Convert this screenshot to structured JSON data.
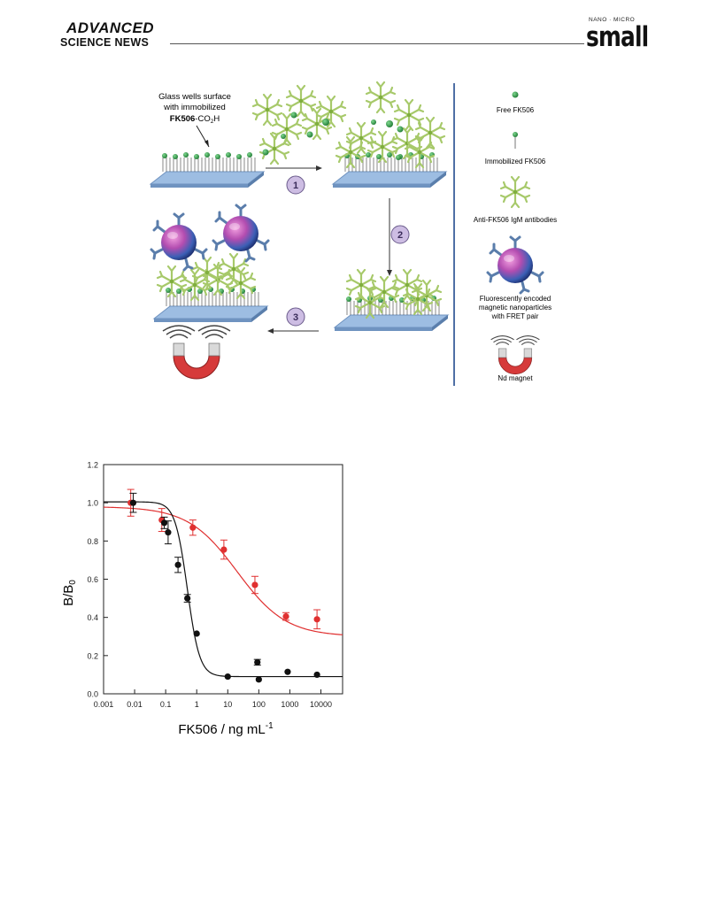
{
  "header": {
    "publisher_line1": "ADVANCED",
    "publisher_line2": "SCIENCE NEWS",
    "journal_prefix": "NANO · MICRO",
    "journal_name": "small"
  },
  "schematic": {
    "surface_label_lines": [
      "Glass wells surface",
      "with immobilized"
    ],
    "surface_label_compound": "FK506",
    "surface_label_suffix": "-CO",
    "surface_label_sub": "2",
    "surface_label_end": "H",
    "steps": [
      "1",
      "2",
      "3"
    ],
    "legend": [
      {
        "icon": "free-fk506-icon",
        "label": "Free FK506"
      },
      {
        "icon": "immobilized-fk506-icon",
        "label": "Immobilized  FK506"
      },
      {
        "icon": "igm-antibody-icon",
        "label": "Anti-FK506 IgM antibodies"
      },
      {
        "icon": "nanoparticle-icon",
        "label_lines": [
          "Fluorescently encoded",
          "magnetic nanoparticles",
          "with FRET pair"
        ]
      },
      {
        "icon": "magnet-icon",
        "label": "Nd magnet"
      }
    ],
    "colors": {
      "green": "#2f9a4a",
      "antibody": "#a7c96a",
      "glass": "#8fb3dc",
      "magnet": "#d63a3a",
      "step_circle": "#c9b8e0"
    }
  },
  "chart_data": {
    "type": "scatter",
    "xlabel": "FK506 / ng mL",
    "xlabel_sup": "-1",
    "ylabel": "B/B",
    "ylabel_sub": "0",
    "xscale": "log",
    "xlim": [
      0.001,
      50000
    ],
    "ylim": [
      0,
      1.2
    ],
    "xticks": [
      "0.001",
      "0.01",
      "0.1",
      "1",
      "10",
      "100",
      "1000",
      "10000"
    ],
    "yticks": [
      "0.0",
      "0.2",
      "0.4",
      "0.6",
      "0.8",
      "1.0",
      "1.2"
    ],
    "series": [
      {
        "color": "#e03030",
        "x": [
          0.0075,
          0.075,
          0.75,
          7.5,
          75,
          750,
          7500
        ],
        "y": [
          1.0,
          0.91,
          0.87,
          0.755,
          0.57,
          0.405,
          0.39
        ],
        "err": [
          0.07,
          0.06,
          0.04,
          0.05,
          0.045,
          0.02,
          0.05
        ],
        "fit": {
          "top": 0.98,
          "bottom": 0.3,
          "ic50": 20,
          "slope": 0.55
        }
      },
      {
        "color": "#111111",
        "x": [
          0.009,
          0.09,
          0.12,
          0.25,
          0.5,
          1.0,
          10,
          90,
          100,
          850,
          7500
        ],
        "y": [
          1.0,
          0.895,
          0.845,
          0.675,
          0.5,
          0.315,
          0.09,
          0.165,
          0.075,
          0.115,
          0.1
        ],
        "err": [
          0.05,
          0.03,
          0.06,
          0.04,
          0.02,
          0.0,
          0.0,
          0.015,
          0.0,
          0.0,
          0.0
        ],
        "fit": {
          "top": 1.005,
          "bottom": 0.09,
          "ic50": 0.5,
          "slope": 2.2
        }
      }
    ]
  }
}
